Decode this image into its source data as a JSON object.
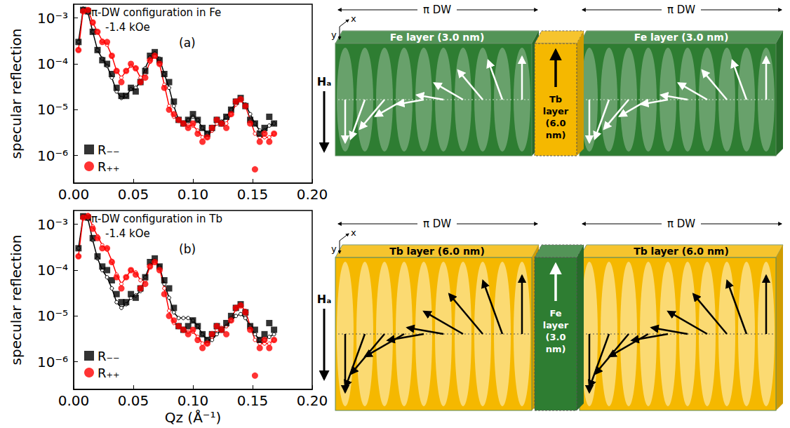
{
  "chart_data": [
    {
      "type": "scatter",
      "title": "π-DW configuration in Fe",
      "subtitle": "-1.4 kOe",
      "annotations": [
        "(a)"
      ],
      "y_label": "specular reflection",
      "x": [
        0.004,
        0.008,
        0.012,
        0.016,
        0.02,
        0.024,
        0.028,
        0.032,
        0.036,
        0.04,
        0.044,
        0.048,
        0.052,
        0.056,
        0.06,
        0.064,
        0.068,
        0.072,
        0.076,
        0.08,
        0.084,
        0.088,
        0.092,
        0.096,
        0.1,
        0.104,
        0.108,
        0.112,
        0.116,
        0.12,
        0.124,
        0.128,
        0.132,
        0.136,
        0.14,
        0.144,
        0.148,
        0.152,
        0.156,
        0.16,
        0.164,
        0.168
      ],
      "series": [
        {
          "name": "R₋₋",
          "color": "#000000",
          "marker": "square",
          "values": [
            0.0003,
            0.0015,
            0.0014,
            0.0005,
            0.0002,
            0.00012,
            0.0001,
            6e-05,
            3e-05,
            2e-05,
            2e-05,
            3e-05,
            2.5e-05,
            4e-05,
            7e-05,
            0.00015,
            0.00018,
            0.00012,
            6e-05,
            4e-05,
            1.5e-05,
            6e-06,
            5e-06,
            6e-06,
            8e-06,
            6e-06,
            4e-06,
            3e-06,
            4e-06,
            6e-06,
            5e-06,
            7e-06,
            1e-05,
            1.5e-05,
            1.8e-05,
            1.2e-05,
            6e-06,
            5e-06,
            3e-06,
            4e-06,
            7e-06,
            5e-06
          ],
          "fit": [
            0.0003,
            0.0016,
            0.0013,
            0.0005,
            0.0002,
            0.00013,
            9e-05,
            5e-05,
            2.5e-05,
            1.8e-05,
            2e-05,
            2.8e-05,
            3e-05,
            4e-05,
            8e-05,
            0.00014,
            0.00017,
            0.00013,
            6e-05,
            3e-05,
            1.2e-05,
            6e-06,
            5e-06,
            6e-06,
            7e-06,
            6e-06,
            4e-06,
            3e-06,
            3.5e-06,
            5e-06,
            5.5e-06,
            7e-06,
            1e-05,
            1.4e-05,
            1.6e-05,
            1.3e-05,
            8e-06,
            5e-06,
            3.5e-06,
            3.5e-06,
            4.5e-06,
            5e-06
          ]
        },
        {
          "name": "R₊₊",
          "color": "#ff0000",
          "marker": "circle",
          "values": [
            0.0002,
            0.0014,
            0.0015,
            0.0008,
            0.0005,
            0.0003,
            0.0003,
            0.00015,
            7e-05,
            4e-05,
            7e-05,
            0.0001,
            8e-05,
            4e-05,
            5e-05,
            0.00012,
            0.00015,
            0.0001,
            3e-05,
            1e-05,
            8e-06,
            6e-06,
            5e-06,
            4e-06,
            5e-06,
            3e-06,
            2e-06,
            2.5e-06,
            4e-06,
            6e-06,
            5e-06,
            4e-06,
            8e-06,
            1.5e-05,
            1.7e-05,
            1.2e-05,
            5e-06,
            5e-07,
            2e-06,
            3e-06,
            2e-06,
            3e-06
          ],
          "fit": [
            0.0002,
            0.0015,
            0.0015,
            0.0008,
            0.0005,
            0.00032,
            0.00026,
            0.00015,
            7e-05,
            5e-05,
            7e-05,
            9e-05,
            8e-05,
            5e-05,
            6e-05,
            0.00011,
            0.00015,
            0.0001,
            3.5e-05,
            1.2e-05,
            7e-06,
            6e-06,
            5e-06,
            4.5e-06,
            4.5e-06,
            3.5e-06,
            2.5e-06,
            2.5e-06,
            3.5e-06,
            5e-06,
            5e-06,
            5e-06,
            8e-06,
            1.3e-05,
            1.6e-05,
            1.2e-05,
            6e-06,
            3e-06,
            2.5e-06,
            2.5e-06,
            2.5e-06,
            3e-06
          ]
        }
      ],
      "xlim": [
        0,
        0.2
      ],
      "xticks": [
        {
          "value": 0,
          "label": "0.00"
        },
        {
          "value": 0.05,
          "label": "0.05"
        },
        {
          "value": 0.1,
          "label": "0.10"
        },
        {
          "value": 0.15,
          "label": "0.15"
        },
        {
          "value": 0.2,
          "label": "0.20"
        }
      ],
      "ylim": [
        2.5e-07,
        0.002
      ],
      "yticks": [
        {
          "value": 1e-06,
          "label": "10⁻⁶"
        },
        {
          "value": 1e-05,
          "label": "10⁻⁵"
        },
        {
          "value": 0.0001,
          "label": "10⁻⁴"
        },
        {
          "value": 0.001,
          "label": "10⁻³"
        }
      ],
      "log": "y",
      "grid": false,
      "legend": "lower left"
    },
    {
      "type": "scatter",
      "title": "π-DW configuration in Tb",
      "subtitle": "-1.4 kOe",
      "annotations": [
        "(b)"
      ],
      "x_label": "Qz (Å⁻¹)",
      "y_label": "specular reflection",
      "x": [
        0.004,
        0.008,
        0.012,
        0.016,
        0.02,
        0.024,
        0.028,
        0.032,
        0.036,
        0.04,
        0.044,
        0.048,
        0.052,
        0.056,
        0.06,
        0.064,
        0.068,
        0.072,
        0.076,
        0.08,
        0.084,
        0.088,
        0.092,
        0.096,
        0.1,
        0.104,
        0.108,
        0.112,
        0.116,
        0.12,
        0.124,
        0.128,
        0.132,
        0.136,
        0.14,
        0.144,
        0.148,
        0.152,
        0.156,
        0.16,
        0.164,
        0.168
      ],
      "series": [
        {
          "name": "R₋₋",
          "color": "#000000",
          "marker": "square",
          "values": [
            0.0003,
            0.0015,
            0.0014,
            0.0005,
            0.0002,
            0.00012,
            0.0001,
            6e-05,
            3e-05,
            2e-05,
            2e-05,
            3e-05,
            2.5e-05,
            4e-05,
            7e-05,
            0.00015,
            0.00018,
            0.00012,
            6e-05,
            4e-05,
            1.5e-05,
            6e-06,
            5e-06,
            6e-06,
            8e-06,
            6e-06,
            4e-06,
            3e-06,
            4e-06,
            6e-06,
            5e-06,
            7e-06,
            1e-05,
            1.5e-05,
            1.8e-05,
            1.2e-05,
            6e-06,
            5e-06,
            3e-06,
            4e-06,
            7e-06,
            5e-06
          ],
          "fit": [
            0.0003,
            0.0015,
            0.0013,
            0.00045,
            0.00018,
            0.0001,
            7e-05,
            4e-05,
            2e-05,
            1.5e-05,
            1.8e-05,
            2.5e-05,
            2.8e-05,
            3.5e-05,
            7e-05,
            0.00013,
            0.00016,
            0.00012,
            5e-05,
            2.5e-05,
            1.2e-05,
            9e-06,
            9e-06,
            9e-06,
            8e-06,
            6e-06,
            4e-06,
            3e-06,
            3e-06,
            4e-06,
            5e-06,
            6e-06,
            8e-06,
            1e-05,
            1.1e-05,
            9e-06,
            6e-06,
            4e-06,
            3e-06,
            3e-06,
            3.5e-06,
            4e-06
          ]
        },
        {
          "name": "R₊₊",
          "color": "#ff0000",
          "marker": "circle",
          "values": [
            0.0002,
            0.0014,
            0.0015,
            0.0008,
            0.0005,
            0.0003,
            0.0003,
            0.00015,
            7e-05,
            4e-05,
            7e-05,
            0.0001,
            8e-05,
            4e-05,
            5e-05,
            0.00012,
            0.00015,
            0.0001,
            3e-05,
            1e-05,
            8e-06,
            6e-06,
            5e-06,
            4e-06,
            5e-06,
            3e-06,
            2e-06,
            2.5e-06,
            4e-06,
            6e-06,
            5e-06,
            4e-06,
            8e-06,
            1.5e-05,
            1.7e-05,
            1.2e-05,
            5e-06,
            5e-07,
            2e-06,
            3e-06,
            2e-06,
            3e-06
          ],
          "fit": [
            0.0002,
            0.0015,
            0.0016,
            0.0009,
            0.00055,
            0.00035,
            0.00028,
            0.00016,
            8e-05,
            5e-05,
            7e-05,
            0.0001,
            9e-05,
            6e-05,
            6e-05,
            0.00012,
            0.00016,
            0.00011,
            4e-05,
            1.3e-05,
            7e-06,
            6e-06,
            5e-06,
            4.5e-06,
            4.5e-06,
            3.5e-06,
            2.5e-06,
            2.5e-06,
            3.5e-06,
            5e-06,
            5.5e-06,
            6e-06,
            9e-06,
            1.4e-05,
            1.7e-05,
            1.3e-05,
            6e-06,
            3e-06,
            2.5e-06,
            2.5e-06,
            2.5e-06,
            3e-06
          ]
        }
      ],
      "xlim": [
        0,
        0.2
      ],
      "xticks": [
        {
          "value": 0,
          "label": "0.00"
        },
        {
          "value": 0.05,
          "label": "0.05"
        },
        {
          "value": 0.1,
          "label": "0.10"
        },
        {
          "value": 0.15,
          "label": "0.15"
        },
        {
          "value": 0.2,
          "label": "0.20"
        }
      ],
      "ylim": [
        2.5e-07,
        0.002
      ],
      "yticks": [
        {
          "value": 1e-06,
          "label": "10⁻⁶"
        },
        {
          "value": 1e-05,
          "label": "10⁻⁵"
        },
        {
          "value": 0.0001,
          "label": "10⁻⁴"
        },
        {
          "value": 0.001,
          "label": "10⁻³"
        }
      ],
      "log": "y",
      "grid": false,
      "legend": "lower left"
    }
  ],
  "diagrams": [
    {
      "span_labels": [
        "π DW",
        "π DW"
      ],
      "outer_layers": [
        "Fe layer (3.0 nm)",
        "Fe layer (3.0 nm)"
      ],
      "outer_color": "#2e7d32",
      "inner_layer": "Tb layer (6.0 nm)",
      "inner_color": "#f5b800",
      "field_label": "Hₐ",
      "axis_labels": [
        "x",
        "y"
      ]
    },
    {
      "span_labels": [
        "π DW",
        "π DW"
      ],
      "outer_layers": [
        "Tb layer (6.0 nm)",
        "Tb layer (6.0 nm)"
      ],
      "outer_color": "#f5b800",
      "inner_layer": "Fe layer (3.0 nm)",
      "inner_color": "#2e7d32",
      "field_label": "Hₐ",
      "axis_labels": [
        "x",
        "y"
      ]
    }
  ]
}
